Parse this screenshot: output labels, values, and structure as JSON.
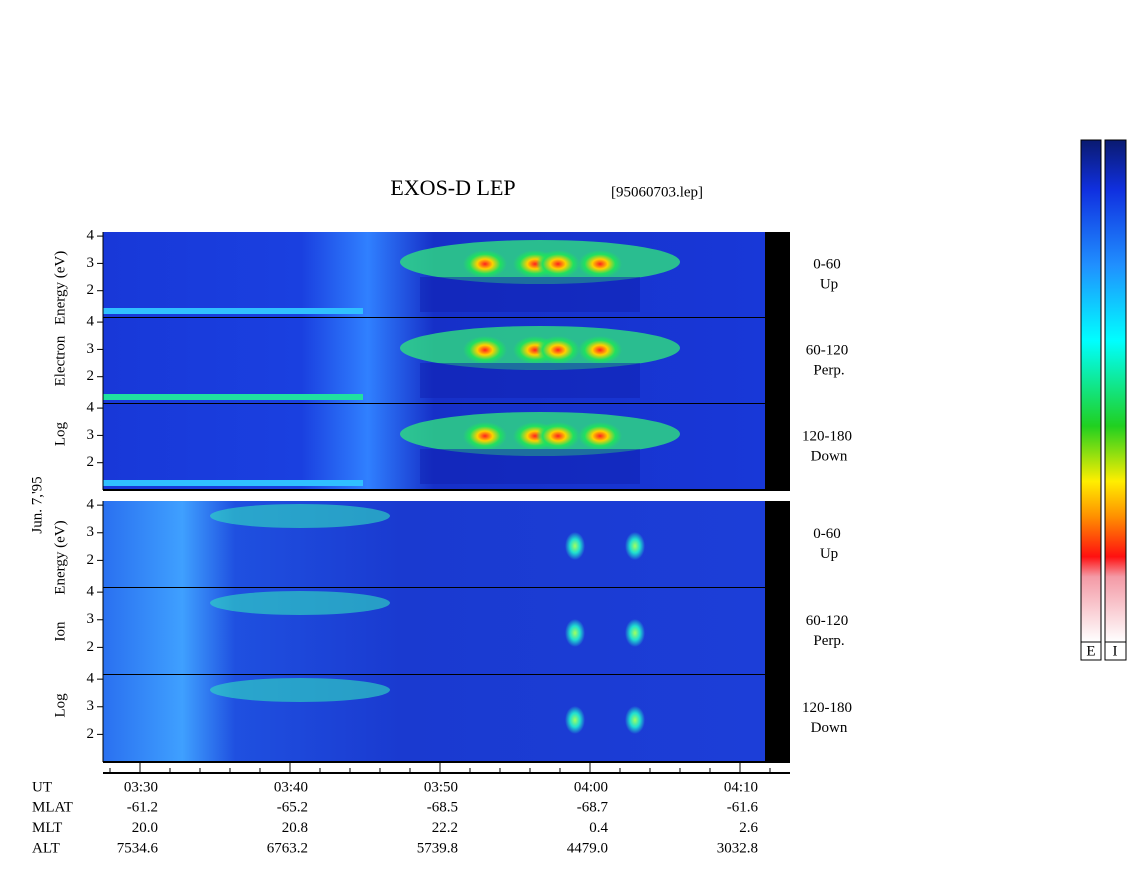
{
  "title": "EXOS-D LEP",
  "file": "[95060703.lep]",
  "date_label": "Jun. 7,'95",
  "electron": {
    "ylabel_parts": [
      "Log",
      "Electron",
      "Energy (eV)"
    ],
    "ylim": [
      1,
      4.15
    ],
    "yticks": [
      2,
      3,
      4
    ],
    "panels": [
      {
        "angle": "0-60",
        "direction": "Up"
      },
      {
        "angle": "60-120",
        "direction": "Perp."
      },
      {
        "angle": "120-180",
        "direction": "Down"
      }
    ]
  },
  "ion": {
    "ylabel_parts": [
      "Log",
      "Ion",
      "Energy (eV)"
    ],
    "ylim": [
      1,
      4.15
    ],
    "yticks": [
      2,
      3,
      4
    ],
    "panels": [
      {
        "angle": "0-60",
        "direction": "Up"
      },
      {
        "angle": "60-120",
        "direction": "Perp."
      },
      {
        "angle": "120-180",
        "direction": "Down"
      }
    ]
  },
  "time_table": {
    "rows": [
      {
        "label": "UT",
        "values": [
          "03:30",
          "03:40",
          "03:50",
          "04:00",
          "04:10"
        ]
      },
      {
        "label": "MLAT",
        "values": [
          "-61.2",
          "-65.2",
          "-68.5",
          "-68.7",
          "-61.6"
        ]
      },
      {
        "label": "MLT",
        "values": [
          "20.0",
          "20.8",
          "22.2",
          "0.4",
          "2.6"
        ]
      },
      {
        "label": "ALT",
        "values": [
          "7534.6",
          "6763.2",
          "5739.8",
          "4479.0",
          "3032.8"
        ]
      }
    ]
  },
  "colorbar_labels": [
    "E",
    "I"
  ]
}
